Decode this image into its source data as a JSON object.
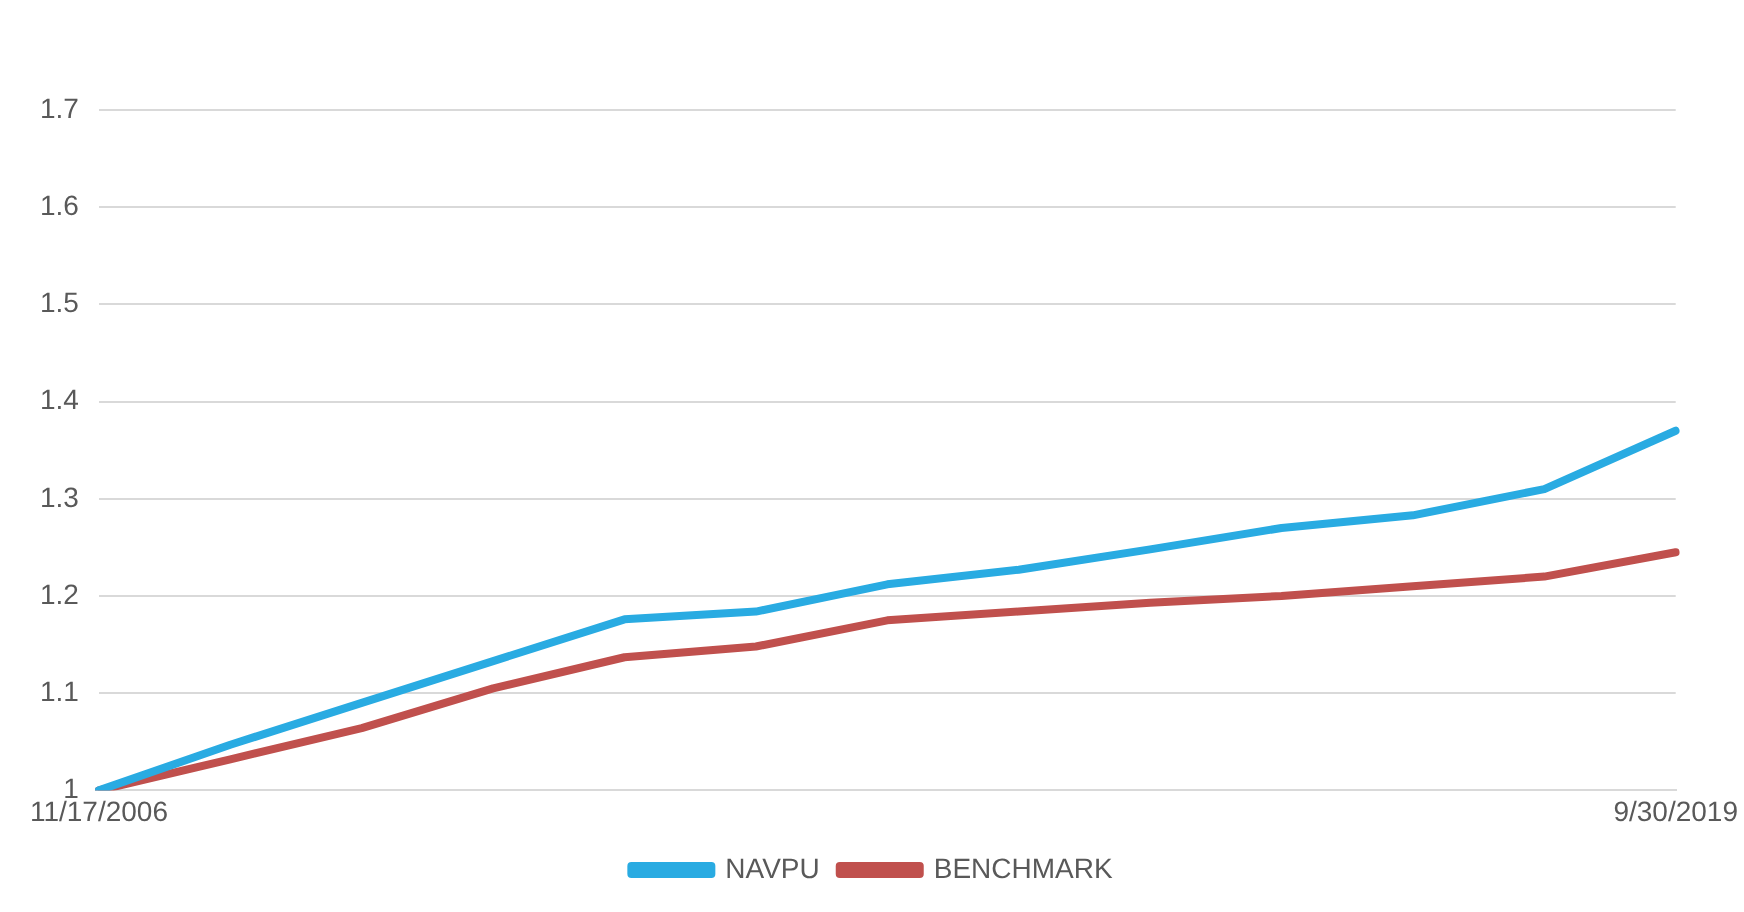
{
  "chart_data": {
    "type": "line",
    "categories": [
      "11/17/2006",
      null,
      null,
      null,
      null,
      null,
      null,
      null,
      null,
      null,
      null,
      null,
      "9/30/2019"
    ],
    "series": [
      {
        "name": "NAVPU",
        "color": "#29abe2",
        "values": [
          1.0,
          1.047,
          1.09,
          1.133,
          1.176,
          1.184,
          1.212,
          1.227,
          1.248,
          1.27,
          1.283,
          1.31,
          1.37
        ]
      },
      {
        "name": "BENCHMARK",
        "color": "#c0504d",
        "values": [
          1.0,
          1.032,
          1.064,
          1.105,
          1.137,
          1.148,
          1.175,
          1.184,
          1.193,
          1.2,
          1.21,
          1.22,
          1.245
        ]
      }
    ],
    "ylim": [
      1,
      1.7
    ],
    "yticks": [
      1,
      1.1,
      1.2,
      1.3,
      1.4,
      1.5,
      1.6,
      1.7
    ],
    "grid": "y",
    "legend": "bottom",
    "marker": "none",
    "line_style": "solid"
  }
}
